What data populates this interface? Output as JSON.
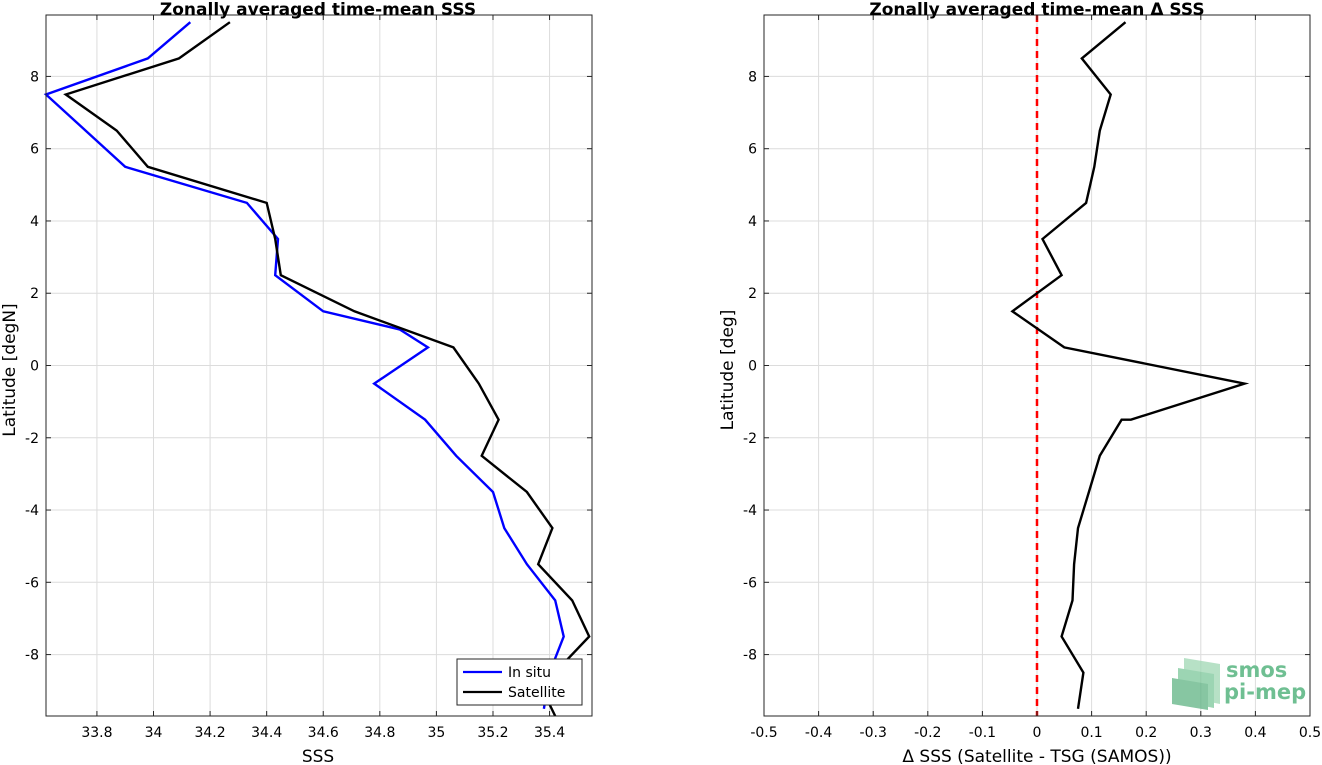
{
  "chart_data": [
    {
      "type": "line",
      "title": "Zonally averaged time-mean SSS",
      "xlabel": "SSS",
      "ylabel": "Latitude [degN]",
      "xlim": [
        33.62,
        35.55
      ],
      "ylim": [
        -9.7,
        9.7
      ],
      "xticks": [
        33.8,
        34,
        34.2,
        34.4,
        34.6,
        34.8,
        35,
        35.2,
        35.4
      ],
      "xtick_labels": [
        "33.8",
        "34",
        "34.2",
        "34.4",
        "34.6",
        "34.8",
        "35",
        "35.2",
        "35.4"
      ],
      "yticks": [
        -8,
        -6,
        -4,
        -2,
        0,
        2,
        4,
        6,
        8
      ],
      "ytick_labels": [
        "-8",
        "-6",
        "-4",
        "-2",
        "0",
        "2",
        "4",
        "6",
        "8"
      ],
      "grid": true,
      "legend": "bottom-right",
      "series": [
        {
          "name": "In situ",
          "color": "#0000ff",
          "x": [
            35.38,
            35.4,
            35.45,
            35.42,
            35.32,
            35.24,
            35.2,
            35.07,
            34.96,
            34.78,
            34.97,
            34.87,
            34.6,
            34.43,
            34.44,
            34.33,
            33.9,
            33.76,
            33.62,
            33.98,
            34.13
          ],
          "y": [
            -9.5,
            -8.5,
            -7.5,
            -6.5,
            -5.5,
            -4.5,
            -3.5,
            -2.5,
            -1.5,
            -0.5,
            0.5,
            1.0,
            1.5,
            2.5,
            3.5,
            4.5,
            5.5,
            6.5,
            7.5,
            8.5,
            9.5
          ]
        },
        {
          "name": "Satellite",
          "color": "#000000",
          "x": [
            35.42,
            35.37,
            35.54,
            35.48,
            35.36,
            35.41,
            35.32,
            35.16,
            35.22,
            35.15,
            35.06,
            34.71,
            34.45,
            34.43,
            34.4,
            33.98,
            33.87,
            33.69,
            34.09,
            34.27
          ],
          "y": [
            -9.7,
            -8.9,
            -7.5,
            -6.5,
            -5.5,
            -4.5,
            -3.5,
            -2.5,
            -1.5,
            -0.5,
            0.5,
            1.5,
            2.5,
            3.5,
            4.5,
            5.5,
            6.5,
            7.5,
            8.5,
            9.5
          ]
        }
      ]
    },
    {
      "type": "line",
      "title": "Zonally averaged time-mean Δ SSS",
      "xlabel": "Δ SSS (Satellite - TSG (SAMOS))",
      "ylabel": "Latitude [deg]",
      "xlim": [
        -0.5,
        0.5
      ],
      "ylim": [
        -9.7,
        9.7
      ],
      "xticks": [
        -0.5,
        -0.4,
        -0.3,
        -0.2,
        -0.1,
        0,
        0.1,
        0.2,
        0.3,
        0.4,
        0.5
      ],
      "xtick_labels": [
        "-0.5",
        "-0.4",
        "-0.3",
        "-0.2",
        "-0.1",
        "0",
        "0.1",
        "0.2",
        "0.3",
        "0.4",
        "0.5"
      ],
      "yticks": [
        -8,
        -6,
        -4,
        -2,
        0,
        2,
        4,
        6,
        8
      ],
      "ytick_labels": [
        "-8",
        "-6",
        "-4",
        "-2",
        "0",
        "2",
        "4",
        "6",
        "8"
      ],
      "grid": true,
      "reference_line": {
        "x": 0,
        "color": "#ff0000",
        "style": "dashed"
      },
      "series": [
        {
          "color": "#000000",
          "x": [
            0.075,
            0.085,
            0.045,
            0.065,
            0.068,
            0.075,
            0.095,
            0.115,
            0.155,
            0.172,
            0.38,
            0.05,
            -0.045,
            0.045,
            0.01,
            0.09,
            0.105,
            0.115,
            0.135,
            0.082,
            0.162
          ],
          "y": [
            -9.5,
            -8.5,
            -7.5,
            -6.5,
            -5.5,
            -4.5,
            -3.5,
            -2.5,
            -1.5,
            -1.5,
            -0.5,
            0.5,
            1.5,
            2.5,
            3.5,
            4.5,
            5.5,
            6.5,
            7.5,
            8.5,
            9.5
          ]
        }
      ]
    }
  ],
  "logo": {
    "line1": "smos",
    "line2": "pi-mep"
  }
}
